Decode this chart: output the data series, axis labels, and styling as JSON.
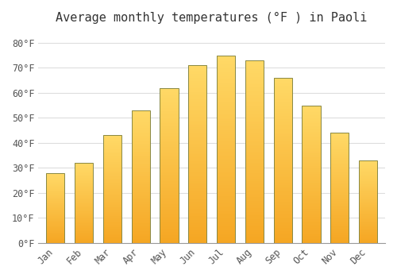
{
  "title": "Average monthly temperatures (°F ) in Paoli",
  "months": [
    "Jan",
    "Feb",
    "Mar",
    "Apr",
    "May",
    "Jun",
    "Jul",
    "Aug",
    "Sep",
    "Oct",
    "Nov",
    "Dec"
  ],
  "values": [
    28,
    32,
    43,
    53,
    62,
    71,
    75,
    73,
    66,
    55,
    44,
    33
  ],
  "bar_color_bottom": "#F5A623",
  "bar_color_top": "#FFD966",
  "bar_edge_color": "#888844",
  "background_color": "#FFFFFF",
  "grid_color": "#DDDDDD",
  "yticks": [
    0,
    10,
    20,
    30,
    40,
    50,
    60,
    70,
    80
  ],
  "ytick_labels": [
    "0°F",
    "10°F",
    "20°F",
    "30°F",
    "40°F",
    "50°F",
    "60°F",
    "70°F",
    "80°F"
  ],
  "ylim": [
    0,
    85
  ],
  "title_fontsize": 11,
  "tick_fontsize": 8.5,
  "font_family": "monospace",
  "bar_width": 0.65,
  "num_gradient_steps": 100
}
